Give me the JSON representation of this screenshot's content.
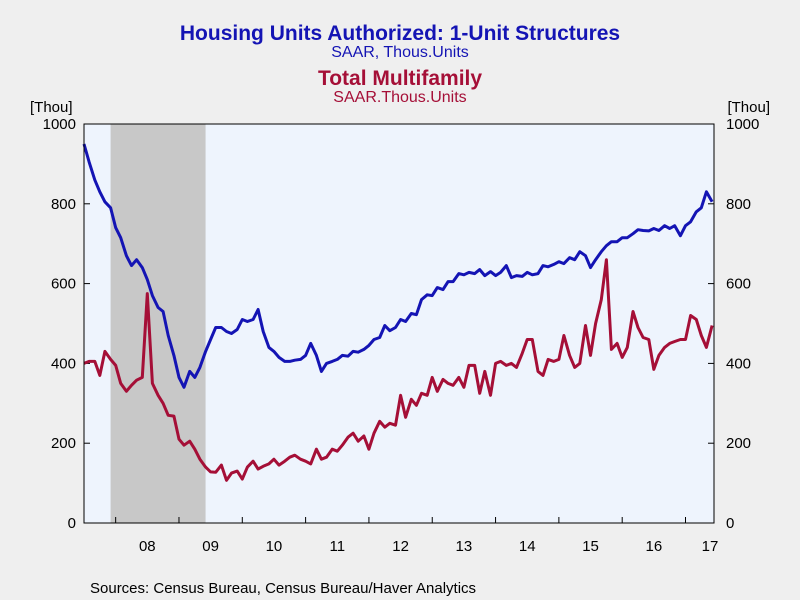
{
  "chart_data": {
    "type": "line",
    "title": "Housing Units Authorized: 1-Unit Structures",
    "subtitle": "SAAR, Thous.Units",
    "title2": "Total Multifamily",
    "subtitle2": "SAAR.Thous.Units",
    "y_unit_left": "[Thou]",
    "y_unit_right": "[Thou]",
    "ylim": [
      0,
      1000
    ],
    "y_ticks": [
      "0",
      "200",
      "400",
      "600",
      "800",
      "1000"
    ],
    "x_range": [
      2007.5,
      2017.45
    ],
    "x_ticks": [
      {
        "label": "08",
        "x": 2008.0
      },
      {
        "label": "09",
        "x": 2009.0
      },
      {
        "label": "10",
        "x": 2010.0
      },
      {
        "label": "11",
        "x": 2011.0
      },
      {
        "label": "12",
        "x": 2012.0
      },
      {
        "label": "13",
        "x": 2013.0
      },
      {
        "label": "14",
        "x": 2014.0
      },
      {
        "label": "15",
        "x": 2015.0
      },
      {
        "label": "16",
        "x": 2016.0
      },
      {
        "label": "17",
        "x": 2017.0
      }
    ],
    "recession": {
      "start": 2007.92,
      "end": 2009.42
    },
    "colors": {
      "series1": "#1414b4",
      "series2": "#a50f37",
      "plot_bg": "#eef4fd",
      "recession": "#c8c8c8",
      "page_bg": "#efefef"
    },
    "grid": false,
    "series": [
      {
        "name": "Housing Units Authorized: 1-Unit Structures",
        "points": [
          [
            2007.5,
            950
          ],
          [
            2007.58,
            905
          ],
          [
            2007.67,
            860
          ],
          [
            2007.75,
            830
          ],
          [
            2007.83,
            805
          ],
          [
            2007.92,
            790
          ],
          [
            2008.0,
            740
          ],
          [
            2008.08,
            715
          ],
          [
            2008.17,
            670
          ],
          [
            2008.25,
            645
          ],
          [
            2008.33,
            660
          ],
          [
            2008.42,
            640
          ],
          [
            2008.5,
            610
          ],
          [
            2008.58,
            570
          ],
          [
            2008.67,
            540
          ],
          [
            2008.75,
            530
          ],
          [
            2008.83,
            470
          ],
          [
            2008.92,
            420
          ],
          [
            2009.0,
            365
          ],
          [
            2009.08,
            340
          ],
          [
            2009.17,
            380
          ],
          [
            2009.25,
            365
          ],
          [
            2009.33,
            390
          ],
          [
            2009.42,
            430
          ],
          [
            2009.5,
            460
          ],
          [
            2009.58,
            490
          ],
          [
            2009.67,
            490
          ],
          [
            2009.75,
            480
          ],
          [
            2009.83,
            475
          ],
          [
            2009.92,
            485
          ],
          [
            2010.0,
            510
          ],
          [
            2010.08,
            505
          ],
          [
            2010.17,
            510
          ],
          [
            2010.25,
            535
          ],
          [
            2010.33,
            480
          ],
          [
            2010.42,
            440
          ],
          [
            2010.5,
            430
          ],
          [
            2010.58,
            415
          ],
          [
            2010.67,
            405
          ],
          [
            2010.75,
            405
          ],
          [
            2010.83,
            408
          ],
          [
            2010.92,
            410
          ],
          [
            2011.0,
            420
          ],
          [
            2011.08,
            450
          ],
          [
            2011.17,
            420
          ],
          [
            2011.25,
            380
          ],
          [
            2011.33,
            400
          ],
          [
            2011.42,
            405
          ],
          [
            2011.5,
            410
          ],
          [
            2011.58,
            420
          ],
          [
            2011.67,
            418
          ],
          [
            2011.75,
            430
          ],
          [
            2011.83,
            428
          ],
          [
            2011.92,
            435
          ],
          [
            2012.0,
            445
          ],
          [
            2012.08,
            460
          ],
          [
            2012.17,
            465
          ],
          [
            2012.25,
            495
          ],
          [
            2012.33,
            482
          ],
          [
            2012.42,
            490
          ],
          [
            2012.5,
            510
          ],
          [
            2012.58,
            505
          ],
          [
            2012.67,
            525
          ],
          [
            2012.75,
            522
          ],
          [
            2012.83,
            560
          ],
          [
            2012.92,
            572
          ],
          [
            2013.0,
            570
          ],
          [
            2013.08,
            590
          ],
          [
            2013.17,
            585
          ],
          [
            2013.25,
            605
          ],
          [
            2013.33,
            605
          ],
          [
            2013.42,
            625
          ],
          [
            2013.5,
            622
          ],
          [
            2013.58,
            628
          ],
          [
            2013.67,
            625
          ],
          [
            2013.75,
            635
          ],
          [
            2013.83,
            620
          ],
          [
            2013.92,
            630
          ],
          [
            2014.0,
            620
          ],
          [
            2014.08,
            628
          ],
          [
            2014.17,
            645
          ],
          [
            2014.25,
            615
          ],
          [
            2014.33,
            620
          ],
          [
            2014.42,
            618
          ],
          [
            2014.5,
            628
          ],
          [
            2014.58,
            622
          ],
          [
            2014.67,
            625
          ],
          [
            2014.75,
            645
          ],
          [
            2014.83,
            642
          ],
          [
            2014.92,
            648
          ],
          [
            2015.0,
            655
          ],
          [
            2015.08,
            650
          ],
          [
            2015.17,
            665
          ],
          [
            2015.25,
            660
          ],
          [
            2015.33,
            680
          ],
          [
            2015.42,
            670
          ],
          [
            2015.5,
            640
          ],
          [
            2015.58,
            660
          ],
          [
            2015.67,
            680
          ],
          [
            2015.75,
            695
          ],
          [
            2015.83,
            705
          ],
          [
            2015.92,
            705
          ],
          [
            2016.0,
            715
          ],
          [
            2016.08,
            715
          ],
          [
            2016.17,
            725
          ],
          [
            2016.25,
            735
          ],
          [
            2016.33,
            733
          ],
          [
            2016.42,
            732
          ],
          [
            2016.5,
            738
          ],
          [
            2016.58,
            733
          ],
          [
            2016.67,
            745
          ],
          [
            2016.75,
            738
          ],
          [
            2016.83,
            745
          ],
          [
            2016.92,
            720
          ],
          [
            2017.0,
            745
          ],
          [
            2017.08,
            755
          ],
          [
            2017.17,
            780
          ],
          [
            2017.25,
            790
          ],
          [
            2017.33,
            830
          ],
          [
            2017.42,
            805
          ],
          [
            2017.5,
            830
          ],
          [
            2017.58,
            825
          ],
          [
            2017.67,
            795
          ],
          [
            2017.75,
            780
          ],
          [
            2017.83,
            812
          ],
          [
            2017.92,
            812
          ]
        ]
      },
      {
        "name": "Total Multifamily",
        "points": [
          [
            2007.5,
            400
          ],
          [
            2007.58,
            405
          ],
          [
            2007.67,
            405
          ],
          [
            2007.75,
            370
          ],
          [
            2007.83,
            430
          ],
          [
            2007.92,
            410
          ],
          [
            2008.0,
            395
          ],
          [
            2008.08,
            350
          ],
          [
            2008.17,
            330
          ],
          [
            2008.25,
            345
          ],
          [
            2008.33,
            358
          ],
          [
            2008.42,
            365
          ],
          [
            2008.5,
            575
          ],
          [
            2008.58,
            350
          ],
          [
            2008.67,
            320
          ],
          [
            2008.75,
            300
          ],
          [
            2008.83,
            270
          ],
          [
            2008.92,
            268
          ],
          [
            2009.0,
            210
          ],
          [
            2009.08,
            195
          ],
          [
            2009.17,
            205
          ],
          [
            2009.25,
            185
          ],
          [
            2009.33,
            160
          ],
          [
            2009.42,
            140
          ],
          [
            2009.5,
            128
          ],
          [
            2009.58,
            127
          ],
          [
            2009.67,
            145
          ],
          [
            2009.75,
            107
          ],
          [
            2009.83,
            125
          ],
          [
            2009.92,
            130
          ],
          [
            2010.0,
            110
          ],
          [
            2010.08,
            140
          ],
          [
            2010.17,
            155
          ],
          [
            2010.25,
            135
          ],
          [
            2010.33,
            142
          ],
          [
            2010.42,
            148
          ],
          [
            2010.5,
            160
          ],
          [
            2010.58,
            145
          ],
          [
            2010.67,
            155
          ],
          [
            2010.75,
            165
          ],
          [
            2010.83,
            170
          ],
          [
            2010.92,
            160
          ],
          [
            2011.0,
            155
          ],
          [
            2011.08,
            148
          ],
          [
            2011.17,
            185
          ],
          [
            2011.25,
            160
          ],
          [
            2011.33,
            165
          ],
          [
            2011.42,
            185
          ],
          [
            2011.5,
            180
          ],
          [
            2011.58,
            195
          ],
          [
            2011.67,
            215
          ],
          [
            2011.75,
            225
          ],
          [
            2011.83,
            205
          ],
          [
            2011.92,
            218
          ],
          [
            2012.0,
            185
          ],
          [
            2012.08,
            225
          ],
          [
            2012.17,
            255
          ],
          [
            2012.25,
            240
          ],
          [
            2012.33,
            250
          ],
          [
            2012.42,
            245
          ],
          [
            2012.5,
            320
          ],
          [
            2012.58,
            265
          ],
          [
            2012.67,
            310
          ],
          [
            2012.75,
            295
          ],
          [
            2012.83,
            325
          ],
          [
            2012.92,
            320
          ],
          [
            2013.0,
            365
          ],
          [
            2013.08,
            330
          ],
          [
            2013.17,
            360
          ],
          [
            2013.25,
            350
          ],
          [
            2013.33,
            345
          ],
          [
            2013.42,
            365
          ],
          [
            2013.5,
            340
          ],
          [
            2013.58,
            395
          ],
          [
            2013.67,
            395
          ],
          [
            2013.75,
            325
          ],
          [
            2013.83,
            380
          ],
          [
            2013.92,
            320
          ],
          [
            2014.0,
            400
          ],
          [
            2014.08,
            405
          ],
          [
            2014.17,
            395
          ],
          [
            2014.25,
            400
          ],
          [
            2014.33,
            390
          ],
          [
            2014.42,
            425
          ],
          [
            2014.5,
            460
          ],
          [
            2014.58,
            460
          ],
          [
            2014.67,
            380
          ],
          [
            2014.75,
            370
          ],
          [
            2014.83,
            410
          ],
          [
            2014.92,
            405
          ],
          [
            2015.0,
            410
          ],
          [
            2015.08,
            470
          ],
          [
            2015.17,
            420
          ],
          [
            2015.25,
            390
          ],
          [
            2015.33,
            400
          ],
          [
            2015.42,
            495
          ],
          [
            2015.5,
            420
          ],
          [
            2015.58,
            500
          ],
          [
            2015.67,
            560
          ],
          [
            2015.75,
            660
          ],
          [
            2015.83,
            435
          ],
          [
            2015.92,
            450
          ],
          [
            2016.0,
            415
          ],
          [
            2016.08,
            440
          ],
          [
            2016.17,
            530
          ],
          [
            2016.25,
            490
          ],
          [
            2016.33,
            465
          ],
          [
            2016.42,
            460
          ],
          [
            2016.5,
            385
          ],
          [
            2016.58,
            420
          ],
          [
            2016.67,
            440
          ],
          [
            2016.75,
            450
          ],
          [
            2016.83,
            455
          ],
          [
            2016.92,
            460
          ],
          [
            2017.0,
            460
          ],
          [
            2017.08,
            520
          ],
          [
            2017.17,
            510
          ],
          [
            2017.25,
            470
          ],
          [
            2017.33,
            440
          ],
          [
            2017.42,
            495
          ],
          [
            2017.5,
            385
          ],
          [
            2017.58,
            435
          ],
          [
            2017.67,
            435
          ],
          [
            2017.75,
            390
          ],
          [
            2017.83,
            465
          ],
          [
            2017.92,
            410
          ]
        ]
      }
    ],
    "source": "Sources:  Census Bureau, Census Bureau/Haver Analytics"
  }
}
